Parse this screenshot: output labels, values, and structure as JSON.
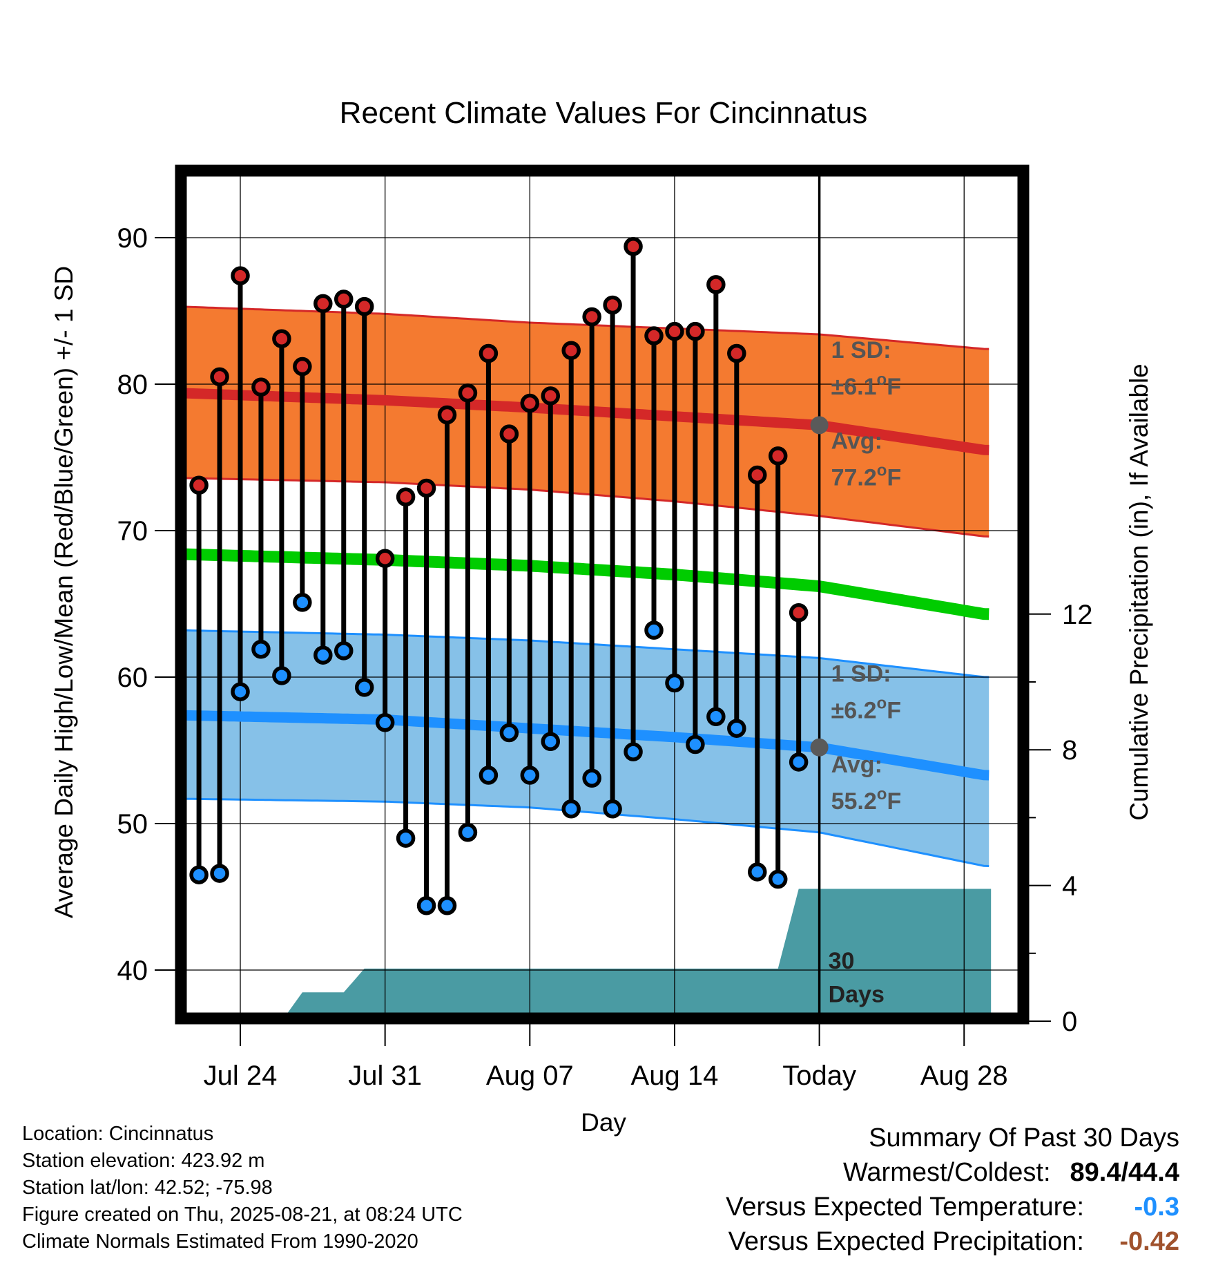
{
  "chart_data": {
    "type": "line",
    "title": "Recent Climate Values For Cincinnatus",
    "xlabel": "Day",
    "ylabel": "Average Daily High/Low/Mean (Red/Blue/Green) +/- 1 SD",
    "y2label": "Cumulative Precipitation (in), If Available",
    "ylim": [
      36,
      94
    ],
    "y2lim": [
      0,
      20
    ],
    "yticks": [
      40,
      50,
      60,
      70,
      80,
      90
    ],
    "y2ticks": [
      0,
      4,
      8,
      12
    ],
    "xlim": [
      -3.1,
      36.3
    ],
    "xticks": [
      {
        "x": 0,
        "label": "Jul 24"
      },
      {
        "x": 7,
        "label": "Jul 31"
      },
      {
        "x": 14,
        "label": "Aug 07"
      },
      {
        "x": 21,
        "label": "Aug 14"
      },
      {
        "x": 28,
        "label": "Today"
      },
      {
        "x": 35,
        "label": "Aug 28"
      }
    ],
    "grid": true,
    "colors": {
      "high": "#d42828",
      "low": "#1e90ff",
      "mean": "#00cc00",
      "high_band": "#f47a30",
      "low_band": "#86c1e8",
      "precip": "#4a9ba3",
      "today_marker": "#5a5a5a"
    },
    "days": [
      -2,
      -1,
      0,
      1,
      2,
      3,
      4,
      5,
      6,
      7,
      8,
      9,
      10,
      11,
      12,
      13,
      14,
      15,
      16,
      17,
      18,
      19,
      20,
      21,
      22,
      23,
      24,
      25,
      26,
      27
    ],
    "daily_high": [
      73.1,
      80.5,
      87.4,
      79.8,
      83.1,
      81.2,
      85.5,
      85.8,
      85.3,
      68.1,
      72.3,
      72.9,
      77.9,
      79.4,
      82.1,
      76.6,
      78.7,
      79.2,
      82.3,
      84.6,
      85.4,
      89.4,
      83.3,
      83.6,
      83.6,
      86.8,
      82.1,
      73.8,
      75.1,
      64.4
    ],
    "daily_low": [
      46.5,
      46.6,
      59.0,
      61.9,
      60.1,
      65.1,
      61.5,
      61.8,
      59.3,
      56.9,
      49.0,
      44.4,
      44.4,
      49.4,
      53.3,
      56.2,
      53.3,
      55.6,
      51.0,
      53.1,
      51.0,
      54.9,
      63.2,
      59.6,
      55.4,
      57.3,
      56.5,
      46.7,
      46.2,
      54.2
    ],
    "normal_high": {
      "x": [
        -3,
        7,
        14,
        21,
        28,
        36
      ],
      "mean": [
        79.4,
        78.9,
        78.4,
        77.8,
        77.2,
        75.5
      ],
      "upper": [
        85.3,
        84.8,
        84.2,
        83.8,
        83.4,
        82.4
      ],
      "lower": [
        73.6,
        73.3,
        72.8,
        72.0,
        71.0,
        69.6
      ]
    },
    "normal_low": {
      "x": [
        -3,
        7,
        14,
        21,
        28,
        36
      ],
      "mean": [
        57.4,
        57.1,
        56.5,
        55.9,
        55.2,
        53.3
      ],
      "upper": [
        63.2,
        62.9,
        62.5,
        61.9,
        61.3,
        60.0
      ],
      "lower": [
        51.7,
        51.5,
        51.1,
        50.3,
        49.4,
        47.1
      ]
    },
    "normal_mean": {
      "x": [
        -3,
        7,
        14,
        21,
        28,
        36
      ],
      "values": [
        68.4,
        68.0,
        67.6,
        67.0,
        66.2,
        64.3
      ]
    },
    "cumulative_precip": {
      "x": [
        -3,
        2,
        3,
        5,
        6,
        26,
        27,
        36.3
      ],
      "values": [
        0,
        0,
        0.85,
        0.85,
        1.55,
        1.55,
        3.9,
        3.9
      ]
    },
    "today": {
      "x": 28,
      "normal_high": 77.2,
      "normal_low": 55.2,
      "label": "30 Days",
      "label_lines": [
        "30",
        "Days"
      ]
    },
    "annotations": {
      "high_sd_label": "1 SD:",
      "high_sd_value": "±6.1°F",
      "high_avg_label": "Avg:",
      "high_avg_value": "77.2°F",
      "low_sd_label": "1 SD:",
      "low_sd_value": "±6.2°F",
      "low_avg_label": "Avg:",
      "low_avg_value": "55.2°F"
    }
  },
  "info": {
    "location": "Location: Cincinnatus",
    "elevation": "Station elevation: 423.92 m",
    "latlon": "Station lat/lon: 42.52; -75.98",
    "created": "Figure created on Thu, 2025-08-21, at 08:24 UTC",
    "normals": "Climate Normals Estimated From 1990-2020"
  },
  "summary": {
    "title": "Summary Of Past 30 Days",
    "warm_cold_label": "Warmest/Coldest:",
    "warm_cold_value": "89.4/44.4",
    "temp_label": "Versus Expected Temperature:",
    "temp_value": "-0.3",
    "temp_color": "#1e90ff",
    "precip_label": "Versus Expected Precipitation:",
    "precip_value": "-0.42",
    "precip_color": "#a0522d"
  }
}
